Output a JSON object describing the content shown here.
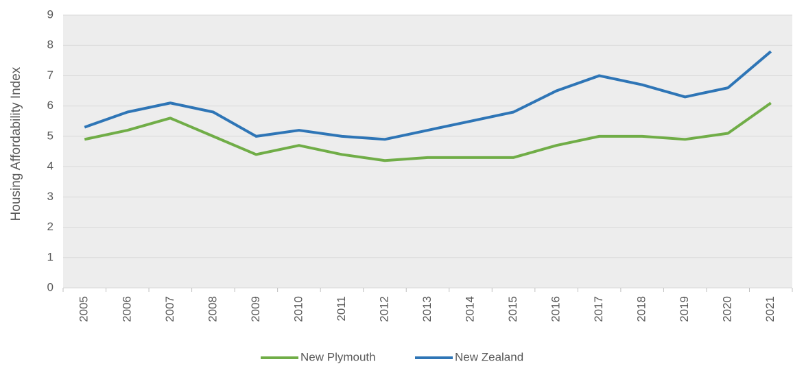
{
  "chart_data": {
    "type": "line",
    "y_label": "Housing Affordability Index",
    "categories": [
      "2005",
      "2006",
      "2007",
      "2008",
      "2009",
      "2010",
      "2011",
      "2012",
      "2013",
      "2014",
      "2015",
      "2016",
      "2017",
      "2018",
      "2019",
      "2020",
      "2021"
    ],
    "series": [
      {
        "name": "New Plymouth",
        "color": "#70ad47",
        "values": [
          4.9,
          5.2,
          5.6,
          5.0,
          4.4,
          4.7,
          4.4,
          4.2,
          4.3,
          4.3,
          4.3,
          4.7,
          5.0,
          5.0,
          4.9,
          5.1,
          6.1
        ]
      },
      {
        "name": "New Zealand",
        "color": "#2e75b6",
        "values": [
          5.3,
          5.8,
          6.1,
          5.8,
          5.0,
          5.2,
          5.0,
          4.9,
          5.2,
          5.5,
          5.8,
          6.5,
          7.0,
          6.7,
          6.3,
          6.6,
          7.8
        ]
      }
    ],
    "ylim": [
      0,
      9
    ],
    "yticks": [
      0,
      1,
      2,
      3,
      4,
      5,
      6,
      7,
      8,
      9
    ],
    "grid": true,
    "legend": "bottom"
  }
}
